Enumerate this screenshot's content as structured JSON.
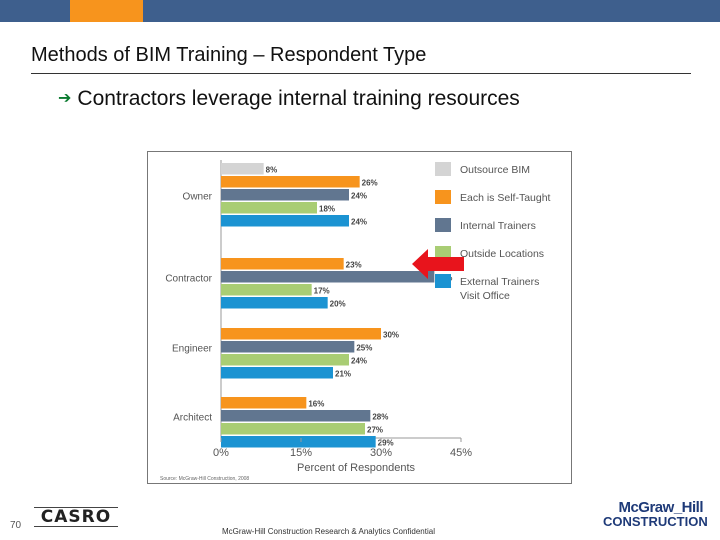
{
  "slide": {
    "title": "Methods of BIM Training – Respondent Type",
    "bullet": "Contractors leverage internal training resources",
    "page_number": "70",
    "footer": "McGraw-Hill Construction Research & Analytics Confidential",
    "brand_line1": "McGraw_Hill",
    "brand_line2": "CONSTRUCTION",
    "casro_label": "CASRO"
  },
  "colors": {
    "top_navy": "#3e5f8d",
    "top_orange": "#f7941d",
    "top_light": "#b9c9dc",
    "accent_arrow": "#e8141c",
    "bullet_icon": "#0a7a2f"
  },
  "icons": {
    "bullet": "arrow-right-icon",
    "highlight": "red-arrow-icon"
  },
  "chart_data": {
    "type": "bar",
    "orientation": "horizontal",
    "categories": [
      "Owner",
      "Contractor",
      "Engineer",
      "Architect"
    ],
    "series": [
      {
        "name": "Outsource BIM",
        "color": "#d4d4d4",
        "values": [
          8,
          null,
          null,
          null
        ]
      },
      {
        "name": "Each is Self-Taught",
        "color": "#f7941d",
        "values": [
          26,
          23,
          30,
          16
        ]
      },
      {
        "name": "Internal Trainers",
        "color": "#617690",
        "values": [
          24,
          40,
          25,
          28
        ]
      },
      {
        "name": "Outside Locations",
        "color": "#a9cd74",
        "values": [
          18,
          17,
          24,
          27
        ]
      },
      {
        "name": "External Trainers Visit Office",
        "color": "#1b93d2",
        "values": [
          24,
          20,
          21,
          29
        ]
      }
    ],
    "data_labels": [
      [
        "8%",
        "",
        "",
        ""
      ],
      [
        "26%",
        "23%",
        "30%",
        "16%"
      ],
      [
        "24%",
        "40%",
        "25%",
        "28%"
      ],
      [
        "18%",
        "17%",
        "24%",
        "27%"
      ],
      [
        "24%",
        "20%",
        "21%",
        "29%"
      ]
    ],
    "legend_labels": [
      "Outsource BIM",
      "Each is Self-Taught",
      "Internal Trainers",
      "Outside Locations",
      "External Trainers\nVisit Office"
    ],
    "x_ticks": [
      0,
      15,
      30,
      45
    ],
    "x_tick_labels": [
      "0%",
      "15%",
      "30%",
      "45%"
    ],
    "xlabel": "Percent of Respondents",
    "xlim": [
      0,
      45
    ],
    "legend_position": "top-right",
    "source": "Source: McGraw-Hill Construction, 2008",
    "grid": false
  }
}
